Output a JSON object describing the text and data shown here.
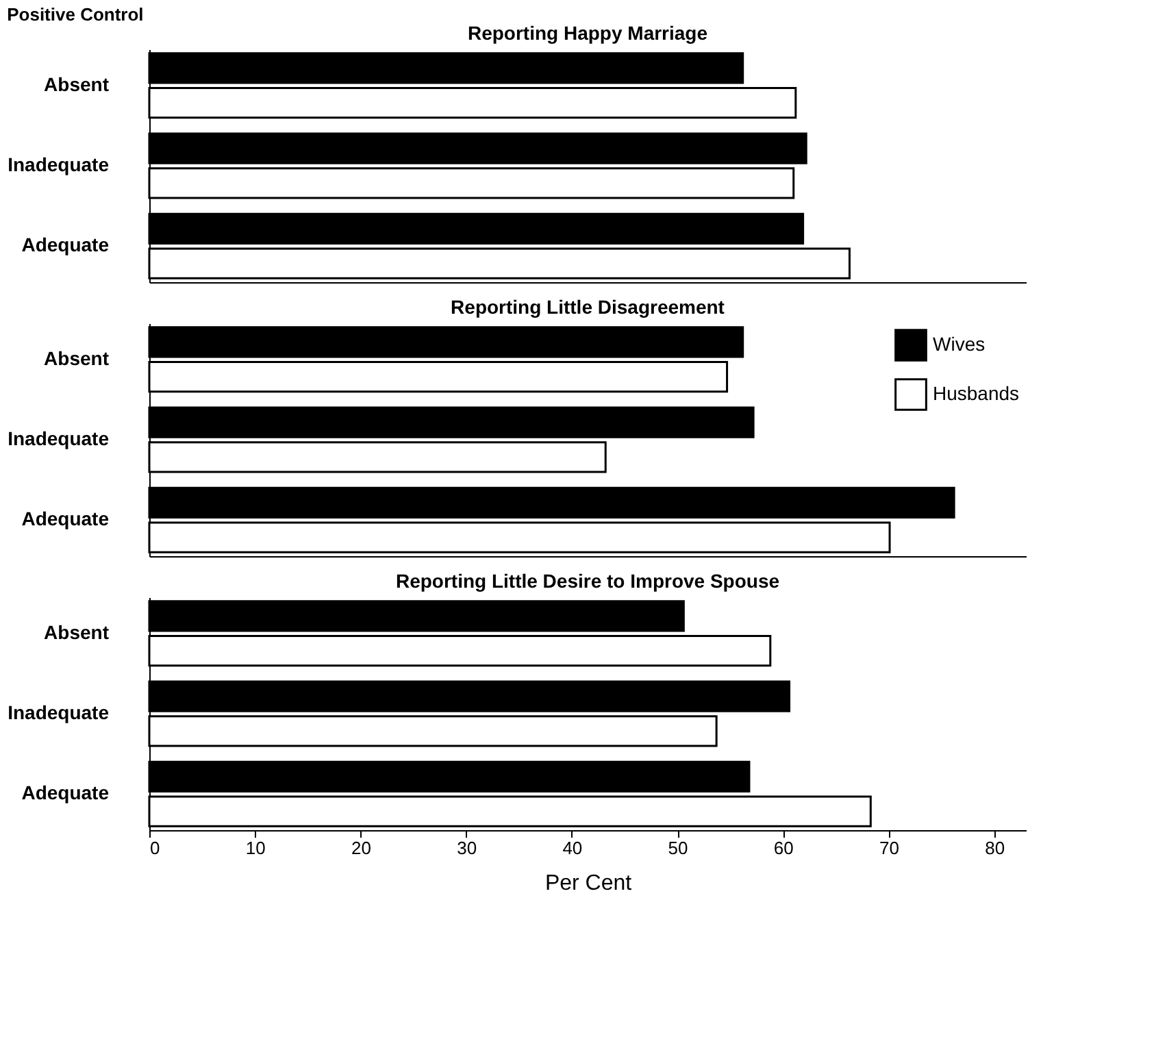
{
  "chart_data": [
    {
      "type": "bar",
      "orientation": "horizontal",
      "title": "Reporting Happy Marriage",
      "annotations": [
        "Positive Control"
      ],
      "categories": [
        "Absent",
        "Inadequate",
        "Adequate"
      ],
      "xlim": [
        0,
        83
      ],
      "tick_labels": "y",
      "legend": false,
      "grid": false,
      "series": [
        {
          "color": "#000000",
          "values": [
            56.2,
            62.2,
            61.9
          ]
        },
        {
          "color": "#ffffff",
          "values": [
            61.2,
            61.0,
            66.3
          ]
        }
      ]
    },
    {
      "type": "bar",
      "orientation": "horizontal",
      "title": "Reporting Little Disagreement",
      "categories": [
        "Absent",
        "Inadequate",
        "Adequate"
      ],
      "xlim": [
        0,
        83
      ],
      "tick_labels": "y",
      "legend": "top right",
      "grid": false,
      "series": [
        {
          "name": "Wives",
          "color": "#000000",
          "values": [
            56.2,
            57.2,
            76.2
          ]
        },
        {
          "name": "Husbands",
          "color": "#ffffff",
          "values": [
            54.7,
            43.2,
            70.1
          ]
        }
      ]
    },
    {
      "type": "bar",
      "orientation": "horizontal",
      "title": "Reporting Little Desire to Improve Spouse",
      "xlabel": "Per Cent",
      "categories": [
        "Absent",
        "Inadequate",
        "Adequate"
      ],
      "xlim": [
        0,
        83
      ],
      "xticks": [
        0,
        10,
        20,
        30,
        40,
        50,
        60,
        70,
        80
      ],
      "legend": false,
      "grid": false,
      "series": [
        {
          "color": "#000000",
          "values": [
            50.6,
            60.6,
            56.8
          ]
        },
        {
          "color": "#ffffff",
          "values": [
            58.8,
            53.7,
            68.3
          ]
        }
      ]
    }
  ]
}
